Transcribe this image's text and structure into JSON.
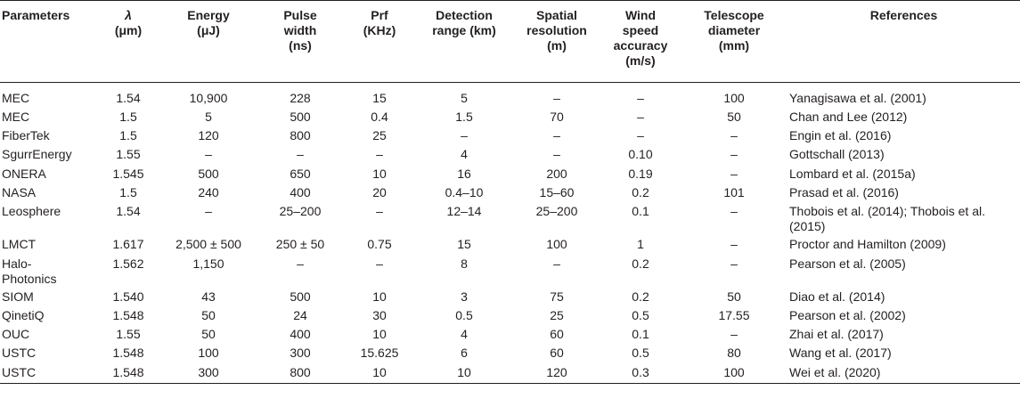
{
  "headers": [
    "Parameters",
    "λ (μm)",
    "Energy (μJ)",
    "Pulse width (ns)",
    "Prf (KHz)",
    "Detection range (km)",
    "Spatial resolution (m)",
    "Wind speed accuracy (m/s)",
    "Telescope diameter (mm)",
    "References"
  ],
  "header_lines": [
    [
      "Parameters"
    ],
    [
      "λ",
      "(μm)"
    ],
    [
      "Energy",
      "(μJ)"
    ],
    [
      "Pulse",
      "width",
      "(ns)"
    ],
    [
      "Prf",
      "(KHz)"
    ],
    [
      "Detection",
      "range (km)"
    ],
    [
      "Spatial",
      "resolution",
      "(m)"
    ],
    [
      "Wind",
      "speed",
      "accuracy",
      "(m/s)"
    ],
    [
      "Telescope",
      "diameter",
      "(mm)"
    ],
    [
      "References"
    ]
  ],
  "rows": [
    [
      "MEC",
      "1.54",
      "10,900",
      "228",
      "15",
      "5",
      "–",
      "–",
      "100",
      "Yanagisawa et al. (2001)"
    ],
    [
      "MEC",
      "1.5",
      "5",
      "500",
      "0.4",
      "1.5",
      "70",
      "–",
      "50",
      "Chan and Lee (2012)"
    ],
    [
      "FiberTek",
      "1.5",
      "120",
      "800",
      "25",
      "–",
      "–",
      "–",
      "–",
      "Engin et al. (2016)"
    ],
    [
      "SgurrEnergy",
      "1.55",
      "–",
      "–",
      "–",
      "4",
      "–",
      "0.10",
      "–",
      "Gottschall (2013)"
    ],
    [
      "ONERA",
      "1.545",
      "500",
      "650",
      "10",
      "16",
      "200",
      "0.19",
      "–",
      "Lombard et al. (2015a)"
    ],
    [
      "NASA",
      "1.5",
      "240",
      "400",
      "20",
      "0.4–10",
      "15–60",
      "0.2",
      "101",
      "Prasad et al. (2016)"
    ],
    [
      "Leosphere",
      "1.54",
      "–",
      "25–200",
      "–",
      "12–14",
      "25–200",
      "0.1",
      "–",
      "Thobois et al. (2014); Thobois et al. (2015)"
    ],
    [
      "LMCT",
      "1.617",
      "2,500 ± 500",
      "250 ± 50",
      "0.75",
      "15",
      "100",
      "1",
      "–",
      "Proctor and Hamilton (2009)"
    ],
    [
      "Halo-Photonics",
      "1.562",
      "1,150",
      "–",
      "–",
      "8",
      "–",
      "0.2",
      "–",
      "Pearson et al. (2005)"
    ],
    [
      "SIOM",
      "1.540",
      "43",
      "500",
      "10",
      "3",
      "75",
      "0.2",
      "50",
      "Diao et al. (2014)"
    ],
    [
      "QinetiQ",
      "1.548",
      "50",
      "24",
      "30",
      "0.5",
      "25",
      "0.5",
      "17.55",
      "Pearson et al. (2002)"
    ],
    [
      "OUC",
      "1.55",
      "50",
      "400",
      "10",
      "4",
      "60",
      "0.1",
      "–",
      "Zhai et al. (2017)"
    ],
    [
      "USTC",
      "1.548",
      "100",
      "300",
      "15.625",
      "6",
      "60",
      "0.5",
      "80",
      "Wang et al. (2017)"
    ],
    [
      "USTC",
      "1.548",
      "300",
      "800",
      "10",
      "10",
      "120",
      "0.3",
      "100",
      "Wei et al. (2020)"
    ]
  ],
  "wrapped_cells": {
    "6_9": [
      "Thobois et al. (2014); Thobois et al.",
      "(2015)"
    ],
    "8_0": [
      "Halo-",
      "Photonics"
    ]
  }
}
